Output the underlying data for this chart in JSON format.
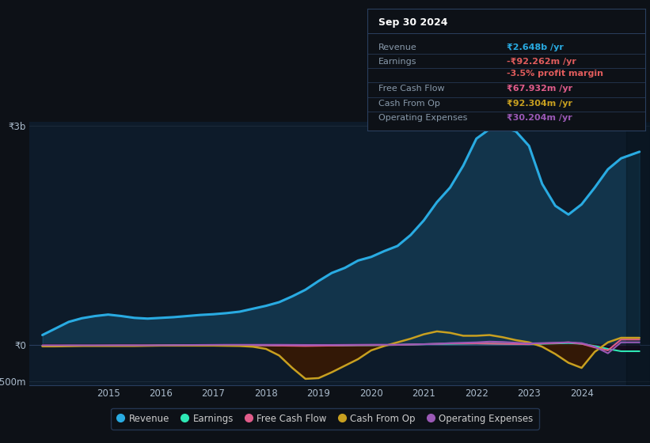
{
  "background_color": "#0d1117",
  "chart_bg_color": "#0d1b2a",
  "y_label_top": "₹3b",
  "y_label_zero": "₹0",
  "y_label_bottom": "-₹500m",
  "x_ticks": [
    2015,
    2016,
    2017,
    2018,
    2019,
    2020,
    2021,
    2022,
    2023,
    2024
  ],
  "ylim": [
    -560,
    3050
  ],
  "xlim": [
    2013.5,
    2025.3
  ],
  "legend": [
    {
      "label": "Revenue",
      "color": "#29abe2"
    },
    {
      "label": "Earnings",
      "color": "#2ee8b5"
    },
    {
      "label": "Free Cash Flow",
      "color": "#e05c8a"
    },
    {
      "label": "Cash From Op",
      "color": "#c8a020"
    },
    {
      "label": "Operating Expenses",
      "color": "#9b59b6"
    }
  ],
  "series": {
    "revenue": {
      "x": [
        2013.75,
        2014.0,
        2014.25,
        2014.5,
        2014.75,
        2015.0,
        2015.25,
        2015.5,
        2015.75,
        2016.0,
        2016.25,
        2016.5,
        2016.75,
        2017.0,
        2017.25,
        2017.5,
        2017.75,
        2018.0,
        2018.25,
        2018.5,
        2018.75,
        2019.0,
        2019.25,
        2019.5,
        2019.75,
        2020.0,
        2020.25,
        2020.5,
        2020.75,
        2021.0,
        2021.25,
        2021.5,
        2021.75,
        2022.0,
        2022.25,
        2022.5,
        2022.75,
        2023.0,
        2023.25,
        2023.5,
        2023.75,
        2024.0,
        2024.25,
        2024.5,
        2024.75,
        2025.1
      ],
      "y": [
        130,
        220,
        310,
        360,
        390,
        410,
        390,
        365,
        355,
        365,
        375,
        390,
        405,
        415,
        430,
        450,
        490,
        530,
        580,
        660,
        750,
        870,
        980,
        1050,
        1150,
        1200,
        1280,
        1350,
        1500,
        1700,
        1950,
        2150,
        2450,
        2820,
        2950,
        2970,
        2920,
        2720,
        2200,
        1900,
        1780,
        1920,
        2150,
        2400,
        2550,
        2640
      ],
      "color": "#29abe2",
      "lw": 2.2
    },
    "earnings": {
      "x": [
        2013.75,
        2014.25,
        2014.75,
        2015.25,
        2015.75,
        2016.25,
        2016.75,
        2017.25,
        2017.75,
        2018.0,
        2018.25,
        2018.75,
        2019.25,
        2019.75,
        2020.0,
        2020.5,
        2021.0,
        2021.5,
        2022.0,
        2022.5,
        2023.0,
        2023.25,
        2023.5,
        2023.75,
        2024.0,
        2024.25,
        2024.5,
        2024.75,
        2025.1
      ],
      "y": [
        -20,
        -15,
        -15,
        -15,
        -15,
        -10,
        -10,
        -10,
        -10,
        -10,
        -15,
        -15,
        -15,
        -10,
        -10,
        -5,
        5,
        10,
        15,
        10,
        5,
        10,
        15,
        20,
        10,
        -20,
        -60,
        -92,
        -92
      ],
      "color": "#2ee8b5",
      "lw": 1.5
    },
    "free_cash_flow": {
      "x": [
        2013.75,
        2014.25,
        2014.75,
        2015.25,
        2015.75,
        2016.25,
        2016.75,
        2017.25,
        2017.75,
        2018.0,
        2018.25,
        2018.75,
        2019.25,
        2019.75,
        2020.0,
        2020.5,
        2021.0,
        2021.25,
        2021.5,
        2022.0,
        2022.5,
        2023.0,
        2023.25,
        2023.5,
        2023.75,
        2024.0,
        2024.25,
        2024.5,
        2024.75,
        2025.1
      ],
      "y": [
        -15,
        -15,
        -15,
        -12,
        -12,
        -12,
        -12,
        -12,
        -12,
        -12,
        -15,
        -20,
        -15,
        -10,
        -8,
        -5,
        5,
        10,
        15,
        15,
        10,
        5,
        15,
        20,
        30,
        10,
        -40,
        -80,
        68,
        68
      ],
      "color": "#e05c8a",
      "lw": 1.5
    },
    "cash_from_op": {
      "x": [
        2013.75,
        2014.0,
        2014.5,
        2015.0,
        2015.5,
        2016.0,
        2016.5,
        2017.0,
        2017.5,
        2017.75,
        2018.0,
        2018.25,
        2018.5,
        2018.75,
        2019.0,
        2019.25,
        2019.75,
        2020.0,
        2020.25,
        2020.5,
        2020.75,
        2021.0,
        2021.25,
        2021.5,
        2021.75,
        2022.0,
        2022.25,
        2022.5,
        2022.75,
        2023.0,
        2023.25,
        2023.5,
        2023.75,
        2024.0,
        2024.25,
        2024.5,
        2024.75,
        2025.1
      ],
      "y": [
        -25,
        -25,
        -20,
        -20,
        -20,
        -15,
        -15,
        -15,
        -20,
        -30,
        -60,
        -150,
        -320,
        -470,
        -460,
        -380,
        -200,
        -80,
        -20,
        30,
        80,
        140,
        180,
        160,
        120,
        120,
        130,
        100,
        60,
        30,
        -30,
        -130,
        -250,
        -320,
        -100,
        30,
        92,
        92
      ],
      "color": "#c8a020",
      "lw": 1.8
    },
    "operating_expenses": {
      "x": [
        2013.75,
        2014.25,
        2014.75,
        2015.25,
        2015.75,
        2016.25,
        2016.75,
        2017.25,
        2017.75,
        2018.25,
        2018.75,
        2019.25,
        2019.75,
        2020.0,
        2020.5,
        2021.0,
        2021.25,
        2021.5,
        2022.0,
        2022.25,
        2022.5,
        2022.75,
        2023.0,
        2023.25,
        2023.5,
        2023.75,
        2024.0,
        2024.25,
        2024.5,
        2024.75,
        2025.1
      ],
      "y": [
        -10,
        -10,
        -10,
        -10,
        -10,
        -8,
        -5,
        -3,
        -3,
        -3,
        -5,
        -5,
        -3,
        -2,
        -2,
        5,
        10,
        20,
        30,
        40,
        35,
        25,
        15,
        20,
        25,
        30,
        20,
        -30,
        -120,
        30,
        30
      ],
      "color": "#9b59b6",
      "lw": 1.5
    }
  },
  "fill_cash_op_color": "#3a1800",
  "fill_earnings_color": "#200015",
  "info_box": {
    "title": "Sep 30 2024",
    "rows": [
      {
        "label": "Revenue",
        "value": "₹2.648b /yr",
        "value_color": "#29abe2"
      },
      {
        "label": "Earnings",
        "value": "-₹92.262m /yr",
        "value_color": "#e05c5c"
      },
      {
        "label": "",
        "value": "-3.5% profit margin",
        "value_color": "#e05c5c"
      },
      {
        "label": "Free Cash Flow",
        "value": "₹67.932m /yr",
        "value_color": "#e05c8a"
      },
      {
        "label": "Cash From Op",
        "value": "₹92.304m /yr",
        "value_color": "#c8a020"
      },
      {
        "label": "Operating Expenses",
        "value": "₹30.204m /yr",
        "value_color": "#9b59b6"
      }
    ]
  }
}
